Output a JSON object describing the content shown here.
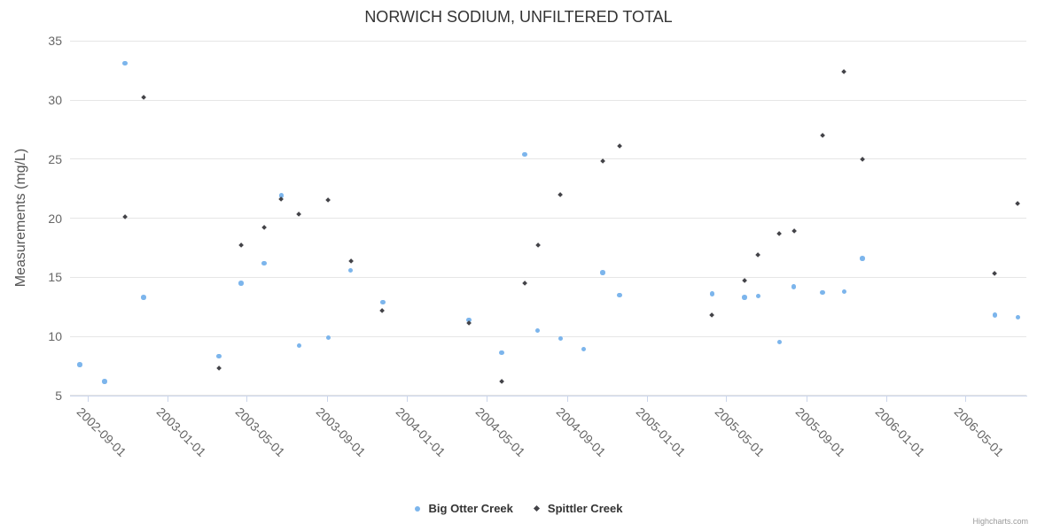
{
  "title": "NORWICH SODIUM, UNFILTERED TOTAL",
  "credits": "Highcharts.com",
  "colors": {
    "series_1": "#7cb5ec",
    "series_2": "#434348",
    "gridline": "#e6e6e6",
    "axis_line": "#ccd6eb",
    "tick_label": "#666666",
    "axis_title": "#555555",
    "title_text": "#333333"
  },
  "legend": {
    "items": [
      {
        "label": "Big Otter Creek",
        "marker": "circle-icon",
        "color": "#7cb5ec"
      },
      {
        "label": "Spittler Creek",
        "marker": "diamond-icon",
        "color": "#434348"
      }
    ]
  },
  "chart_data": {
    "type": "scatter",
    "title": "NORWICH SODIUM, UNFILTERED TOTAL",
    "xlabel": "",
    "ylabel": "Measurements (mg/L)",
    "ylim": [
      5,
      35
    ],
    "y_ticks": [
      5,
      10,
      15,
      20,
      25,
      30,
      35
    ],
    "x_range": [
      "2002-08-05",
      "2006-08-02"
    ],
    "x_ticks": [
      "2002-09-01",
      "2003-01-01",
      "2003-05-01",
      "2003-09-01",
      "2004-01-01",
      "2004-05-01",
      "2004-09-01",
      "2005-01-01",
      "2005-05-01",
      "2005-09-01",
      "2006-01-01",
      "2006-05-01"
    ],
    "grid": "horizontal",
    "legend_position": "bottom",
    "series": [
      {
        "name": "Big Otter Creek",
        "marker": "circle",
        "color": "#7cb5ec",
        "data": [
          [
            "2002-08-20",
            7.6
          ],
          [
            "2002-09-27",
            6.2
          ],
          [
            "2002-10-28",
            33.1
          ],
          [
            "2002-11-25",
            13.3
          ],
          [
            "2003-03-20",
            8.3
          ],
          [
            "2003-04-23",
            14.5
          ],
          [
            "2003-05-28",
            16.2
          ],
          [
            "2003-06-23",
            21.9
          ],
          [
            "2003-07-20",
            9.2
          ],
          [
            "2003-09-03",
            9.9
          ],
          [
            "2003-10-07",
            15.6
          ],
          [
            "2003-11-25",
            12.9
          ],
          [
            "2004-04-04",
            11.4
          ],
          [
            "2004-05-24",
            8.6
          ],
          [
            "2004-06-28",
            25.4
          ],
          [
            "2004-07-18",
            10.5
          ],
          [
            "2004-08-22",
            9.8
          ],
          [
            "2004-09-26",
            8.9
          ],
          [
            "2004-10-25",
            15.4
          ],
          [
            "2004-11-20",
            13.5
          ],
          [
            "2005-04-10",
            13.6
          ],
          [
            "2005-05-29",
            13.3
          ],
          [
            "2005-06-19",
            13.4
          ],
          [
            "2005-07-22",
            9.5
          ],
          [
            "2005-08-12",
            14.2
          ],
          [
            "2005-09-25",
            13.7
          ],
          [
            "2005-10-28",
            13.8
          ],
          [
            "2005-11-25",
            16.6
          ],
          [
            "2006-06-15",
            11.8
          ],
          [
            "2006-07-20",
            11.6
          ]
        ]
      },
      {
        "name": "Spittler Creek",
        "marker": "diamond",
        "color": "#434348",
        "data": [
          [
            "2002-10-28",
            20.1
          ],
          [
            "2002-11-25",
            30.2
          ],
          [
            "2003-03-20",
            7.3
          ],
          [
            "2003-04-23",
            17.7
          ],
          [
            "2003-05-28",
            19.2
          ],
          [
            "2003-06-23",
            21.6
          ],
          [
            "2003-07-20",
            20.3
          ],
          [
            "2003-09-02",
            21.5
          ],
          [
            "2003-10-07",
            16.4
          ],
          [
            "2003-11-24",
            12.2
          ],
          [
            "2004-04-04",
            11.1
          ],
          [
            "2004-05-24",
            6.2
          ],
          [
            "2004-06-28",
            14.5
          ],
          [
            "2004-07-18",
            17.7
          ],
          [
            "2004-08-22",
            22.0
          ],
          [
            "2004-10-25",
            24.8
          ],
          [
            "2004-11-20",
            26.1
          ],
          [
            "2005-04-10",
            11.8
          ],
          [
            "2005-05-29",
            14.7
          ],
          [
            "2005-06-19",
            16.9
          ],
          [
            "2005-07-21",
            18.7
          ],
          [
            "2005-08-13",
            18.9
          ],
          [
            "2005-09-25",
            27.0
          ],
          [
            "2005-10-28",
            32.4
          ],
          [
            "2005-11-25",
            25.0
          ],
          [
            "2006-06-15",
            15.3
          ],
          [
            "2006-07-20",
            21.2
          ]
        ]
      }
    ]
  }
}
